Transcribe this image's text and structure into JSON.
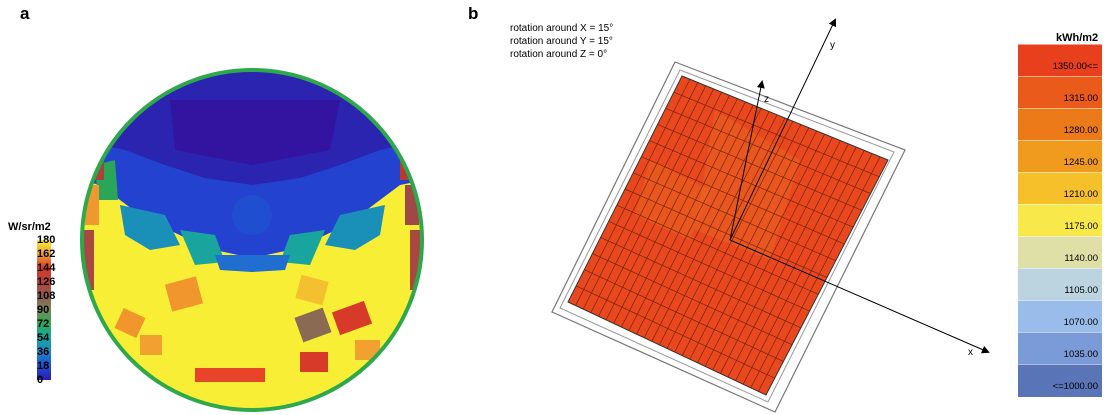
{
  "panels": {
    "a": {
      "label": "a",
      "colorbar": {
        "unit": "W/sr/m2",
        "ticks": [
          "180",
          "162",
          "144",
          "126",
          "108",
          "90",
          "72",
          "54",
          "36",
          "18",
          "0"
        ],
        "range": [
          0,
          180
        ],
        "colors": [
          "#2b1aa8",
          "#1e50d6",
          "#1f82c8",
          "#18a6a0",
          "#2ea85a",
          "#7a8a5a",
          "#8f5a52",
          "#b8443a",
          "#d13a2e",
          "#f2a030",
          "#f7ef3a"
        ]
      }
    },
    "b": {
      "label": "b",
      "rotation_notes": [
        "rotation around X = 15°",
        "rotation around Y = 15°",
        "rotation around Z = 0°"
      ],
      "axis_labels": [
        "y",
        "z",
        "x"
      ],
      "legend": {
        "unit": "kWh/m2",
        "entries": [
          {
            "label": "1350.00<=",
            "color": "#e8401c"
          },
          {
            "label": "1315.00",
            "color": "#ea5a1a"
          },
          {
            "label": "1280.00",
            "color": "#ec7a18"
          },
          {
            "label": "1245.00",
            "color": "#f09a1e"
          },
          {
            "label": "1210.00",
            "color": "#f6c02a"
          },
          {
            "label": "1175.00",
            "color": "#f8e84a"
          },
          {
            "label": "1140.00",
            "color": "#dfe0a8"
          },
          {
            "label": "1105.00",
            "color": "#bcd4e0"
          },
          {
            "label": "1070.00",
            "color": "#9abcea"
          },
          {
            "label": "1035.00",
            "color": "#7b9ad8"
          },
          {
            "label": "<=1000.00",
            "color": "#5a74b8"
          }
        ]
      }
    }
  },
  "chart_data": [
    {
      "type": "heatmap",
      "title": "",
      "colorbar_label": "W/sr/m2",
      "value_range": [
        0,
        180
      ],
      "description_values": {
        "upper_zone": "low radiance (0-18)",
        "middle_ring": "18-54",
        "lower_half": "~180",
        "rim_cells": "108-162"
      }
    },
    {
      "type": "heatmap",
      "title": "",
      "legend_label": "kWh/m2",
      "value_range": [
        1000,
        1350
      ],
      "typical_value": 1350
    }
  ]
}
